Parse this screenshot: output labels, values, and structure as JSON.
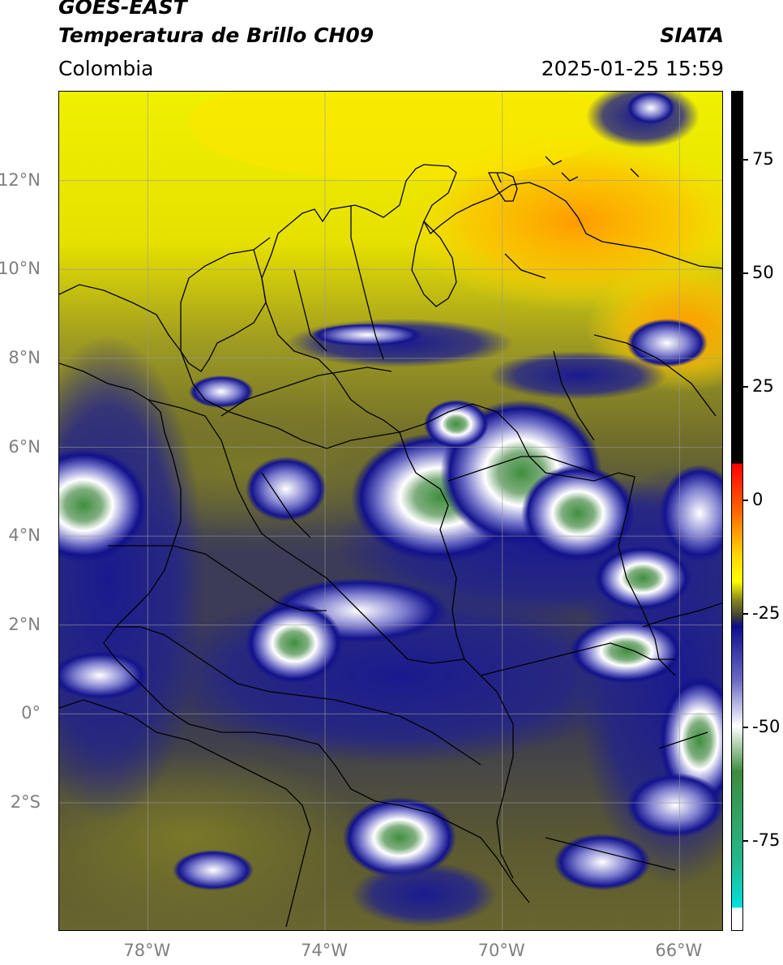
{
  "header": {
    "satellite": "GOES-EAST",
    "product": "Temperatura de Brillo CH09",
    "region": "Colombia",
    "source": "SIATA",
    "datetime": "2025-01-25 15:59"
  },
  "map": {
    "latitude_labels": [
      "12°N",
      "10°N",
      "8°N",
      "6°N",
      "4°N",
      "2°N",
      "0°",
      "2°S"
    ],
    "latitude_values": [
      12,
      10,
      8,
      6,
      4,
      2,
      0,
      -2
    ],
    "longitude_labels": [
      "78°W",
      "74°W",
      "70°W",
      "66°W"
    ],
    "longitude_values": [
      -78,
      -74,
      -70,
      -66
    ],
    "lon_range": [
      -80.0,
      -65.0
    ],
    "lat_range": [
      -4.9,
      14.0
    ],
    "gridlines": true
  },
  "colorbar": {
    "tick_labels": [
      "75",
      "50",
      "25",
      "0",
      "-25",
      "-50",
      "-75"
    ],
    "tick_values": [
      75,
      50,
      25,
      0,
      -25,
      -50,
      -75
    ],
    "range": [
      -95,
      90
    ],
    "stops": [
      {
        "value": 90,
        "color": "#000000"
      },
      {
        "value": 8,
        "color": "#000000"
      },
      {
        "value": 7.9,
        "color": "#ff0000"
      },
      {
        "value": -3,
        "color": "#ff6a00"
      },
      {
        "value": -12,
        "color": "#ffd400"
      },
      {
        "value": -18,
        "color": "#ffff00"
      },
      {
        "value": -22,
        "color": "#8a8a1e"
      },
      {
        "value": -26,
        "color": "#3a3a3a"
      },
      {
        "value": -28,
        "color": "#0d0d8c"
      },
      {
        "value": -40,
        "color": "#6b6bc6"
      },
      {
        "value": -50,
        "color": "#ffffff"
      },
      {
        "value": -60,
        "color": "#3e8c3e"
      },
      {
        "value": -80,
        "color": "#24b88c"
      },
      {
        "value": -90,
        "color": "#00e0e0"
      },
      {
        "value": -90.1,
        "color": "#ffffff"
      },
      {
        "value": -95,
        "color": "#ffffff"
      }
    ]
  }
}
